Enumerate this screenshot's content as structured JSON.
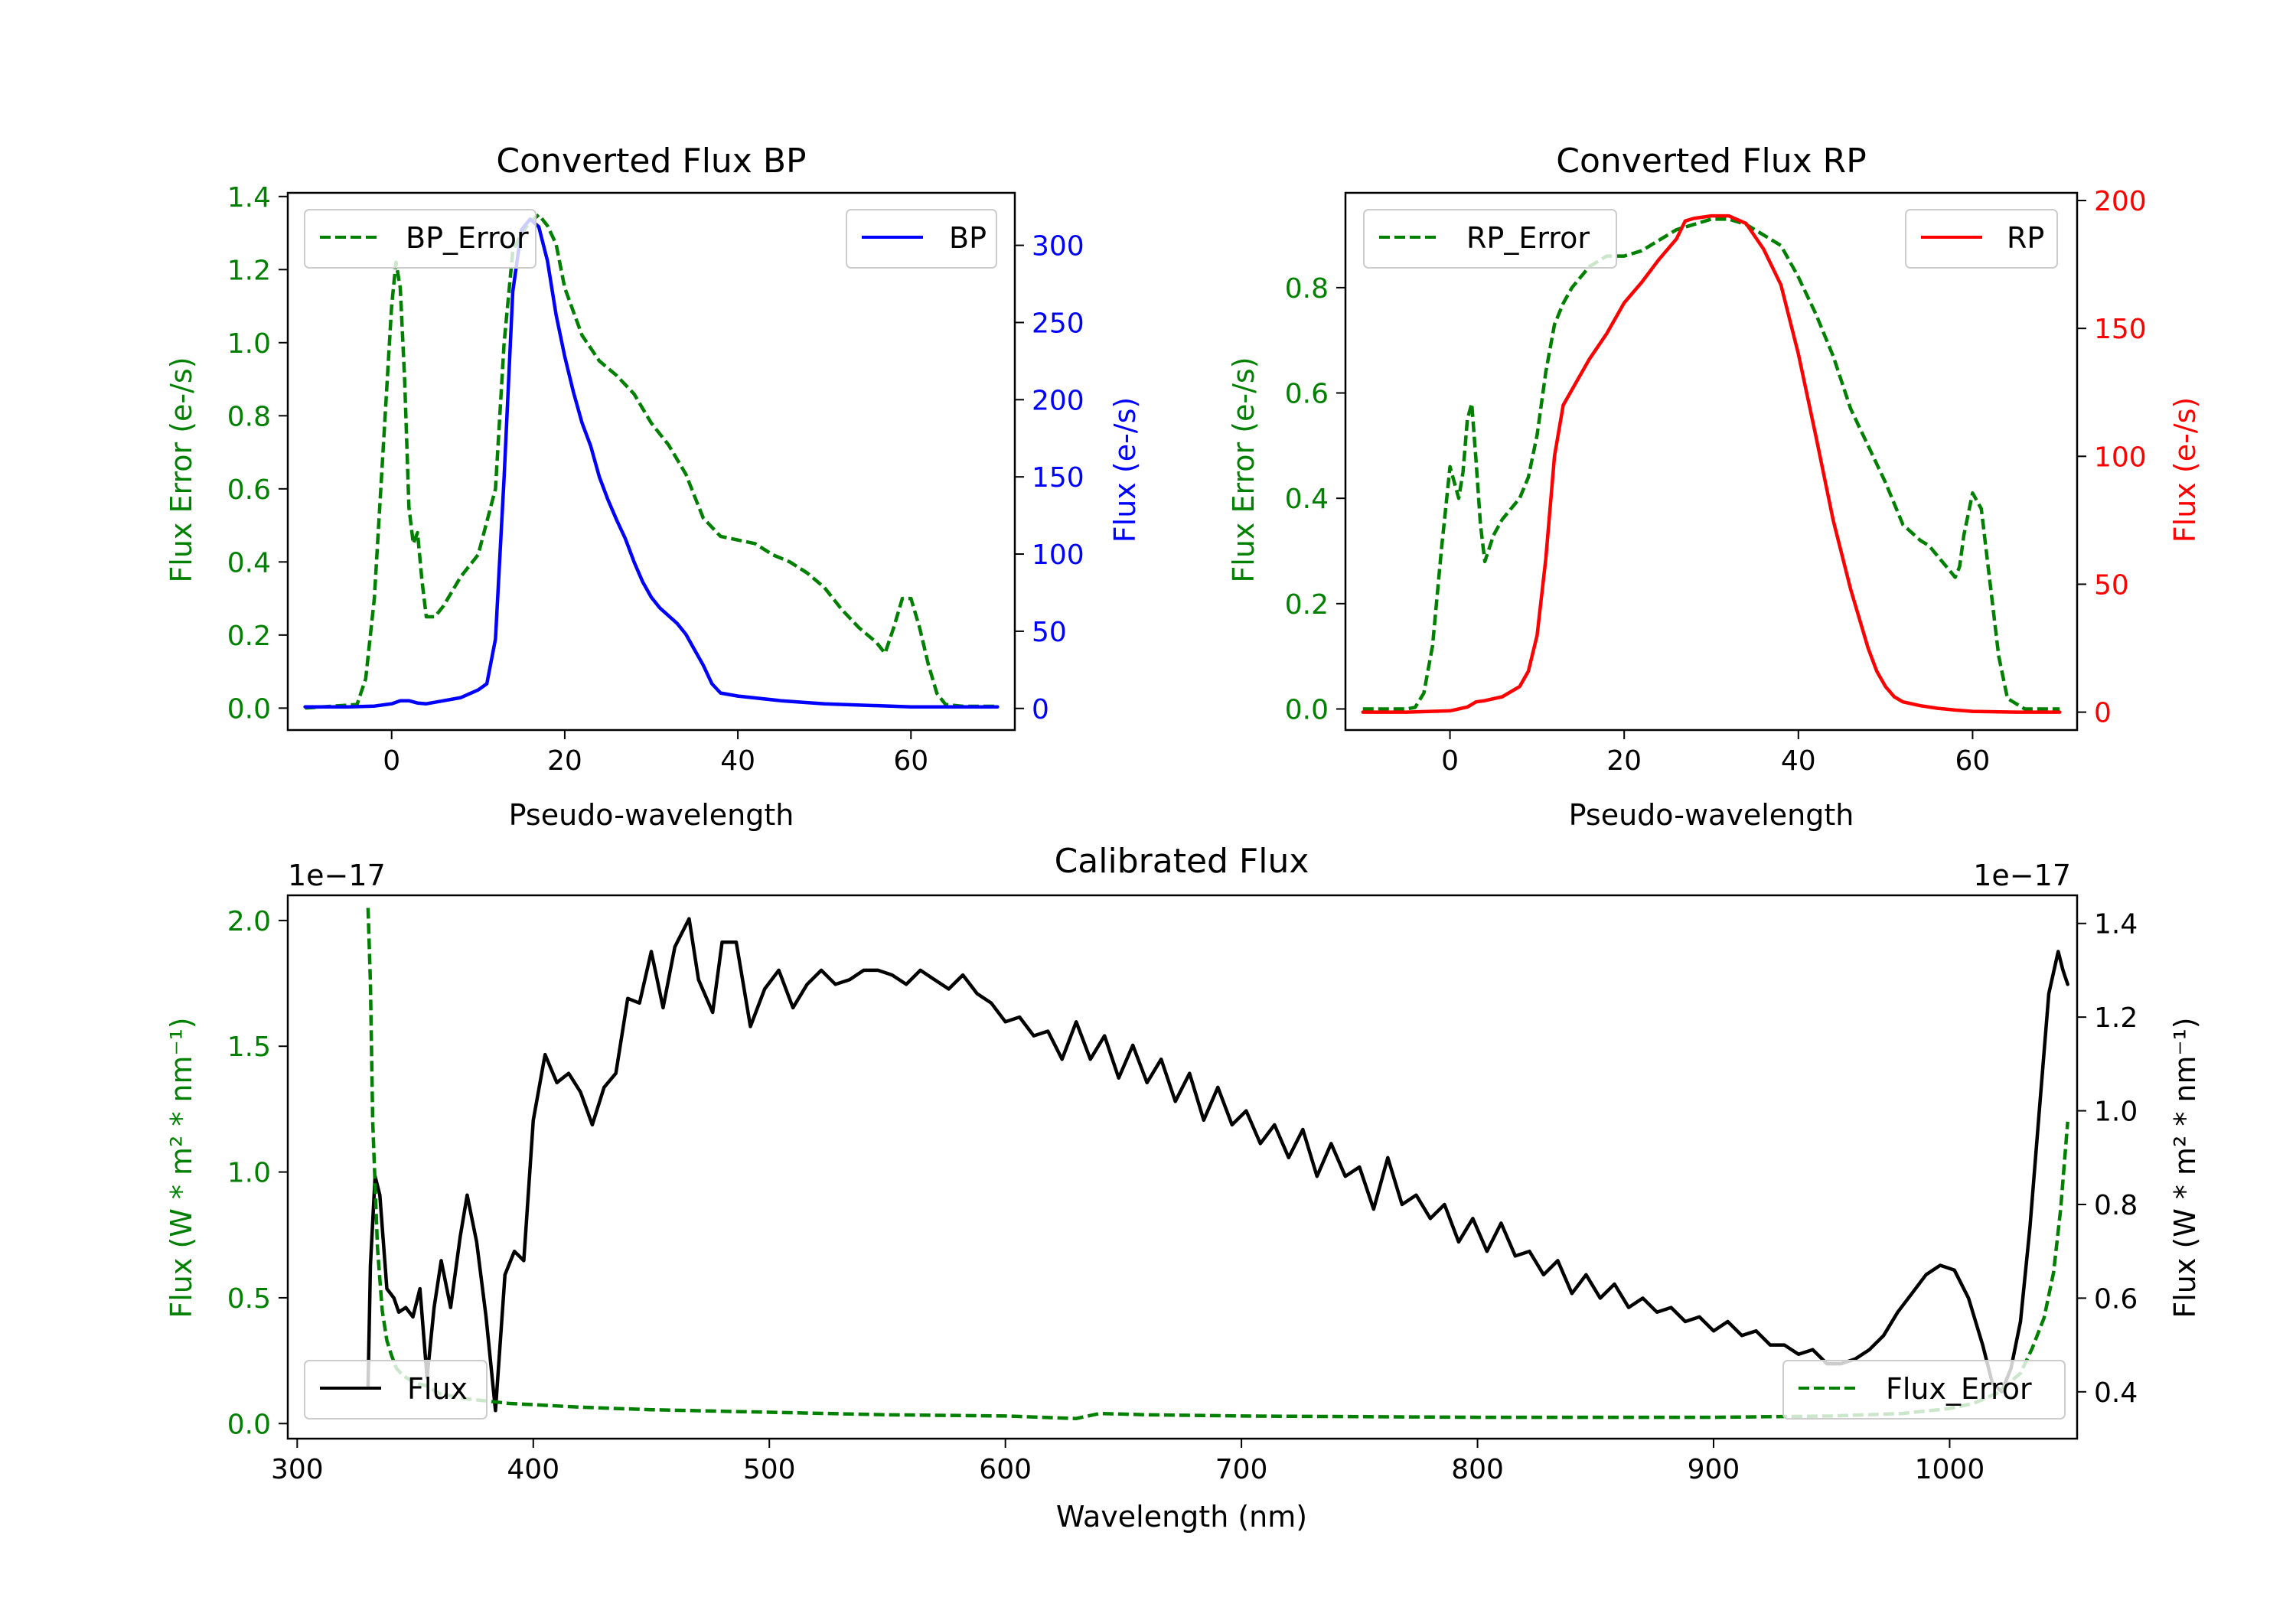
{
  "chart_data": [
    {
      "type": "line",
      "title": "Converted Flux BP",
      "xlabel": "Pseudo-wavelength",
      "ylabel_left": "Flux Error (e-/s)",
      "ylabel_right": "Flux (e-/s)",
      "xlim": [
        -12,
        72
      ],
      "ylim_left": [
        -0.06,
        1.41
      ],
      "ylim_right": [
        -14,
        334
      ],
      "xticks": [
        0,
        20,
        40,
        60
      ],
      "yticks_left": [
        0.0,
        0.2,
        0.4,
        0.6,
        0.8,
        1.0,
        1.2,
        1.4
      ],
      "yticks_left_labels": [
        "0.0",
        "0.2",
        "0.4",
        "0.6",
        "0.8",
        "1.0",
        "1.2",
        "1.4"
      ],
      "yticks_right": [
        0,
        50,
        100,
        150,
        200,
        250,
        300
      ],
      "yticks_right_labels": [
        "0",
        "50",
        "100",
        "150",
        "200",
        "250",
        "300"
      ],
      "left_color": "#008000",
      "right_color": "#0000ff",
      "legend_left": "BP_Error",
      "legend_right": "BP",
      "series": [
        {
          "name": "BP_Error",
          "axis": "left",
          "color": "#008000",
          "dash": true,
          "x": [
            -10,
            -4,
            -3,
            -2,
            -1,
            0,
            0.5,
            1,
            1.5,
            2,
            2.5,
            3,
            3.5,
            4,
            5,
            6,
            8,
            10,
            12,
            13,
            14,
            15,
            16,
            17,
            18,
            19,
            20,
            22,
            24,
            26,
            28,
            30,
            32,
            34,
            35,
            36,
            38,
            40,
            42,
            44,
            46,
            48,
            50,
            52,
            54,
            56,
            57,
            58,
            59,
            60,
            61,
            62,
            63,
            64,
            66,
            68,
            70
          ],
          "y": [
            0,
            0.01,
            0.08,
            0.3,
            0.7,
            1.1,
            1.22,
            1.15,
            0.9,
            0.55,
            0.45,
            0.48,
            0.35,
            0.25,
            0.25,
            0.28,
            0.36,
            0.42,
            0.6,
            1.0,
            1.25,
            1.3,
            1.33,
            1.35,
            1.32,
            1.27,
            1.15,
            1.02,
            0.95,
            0.91,
            0.86,
            0.78,
            0.72,
            0.64,
            0.58,
            0.52,
            0.47,
            0.46,
            0.45,
            0.42,
            0.4,
            0.37,
            0.33,
            0.27,
            0.22,
            0.18,
            0.15,
            0.22,
            0.3,
            0.3,
            0.22,
            0.12,
            0.04,
            0.01,
            0.005,
            0.005,
            0.005
          ]
        },
        {
          "name": "BP",
          "axis": "right",
          "color": "#0000ff",
          "dash": false,
          "x": [
            -10,
            -5,
            -2,
            0,
            1,
            2,
            3,
            4,
            6,
            8,
            10,
            11,
            12,
            13,
            14,
            15,
            16,
            17,
            18,
            19,
            20,
            21,
            22,
            23,
            24,
            25,
            26,
            27,
            28,
            29,
            30,
            31,
            32,
            33,
            34,
            35,
            36,
            37,
            38,
            40,
            45,
            50,
            55,
            60,
            65,
            70
          ],
          "y": [
            1,
            1,
            1.5,
            3,
            5,
            5,
            3.5,
            3,
            5,
            7,
            12,
            16,
            45,
            150,
            270,
            310,
            317,
            312,
            290,
            255,
            228,
            205,
            185,
            170,
            150,
            135,
            122,
            110,
            95,
            82,
            72,
            65,
            60,
            55,
            48,
            38,
            28,
            16,
            10,
            8,
            5,
            3,
            2,
            1,
            1,
            1
          ]
        }
      ]
    },
    {
      "type": "line",
      "title": "Converted Flux RP",
      "xlabel": "Pseudo-wavelength",
      "ylabel_left": "Flux Error (e-/s)",
      "ylabel_right": "Flux (e-/s)",
      "xlim": [
        -12,
        72
      ],
      "ylim_left": [
        -0.04,
        0.98
      ],
      "ylim_right": [
        -7,
        203
      ],
      "xticks": [
        0,
        20,
        40,
        60
      ],
      "yticks_left": [
        0.0,
        0.2,
        0.4,
        0.6,
        0.8
      ],
      "yticks_left_labels": [
        "0.0",
        "0.2",
        "0.4",
        "0.6",
        "0.8"
      ],
      "yticks_right": [
        0,
        50,
        100,
        150,
        200
      ],
      "yticks_right_labels": [
        "0",
        "50",
        "100",
        "150",
        "200"
      ],
      "left_color": "#008000",
      "right_color": "#ff0000",
      "legend_left": "RP_Error",
      "legend_right": "RP",
      "series": [
        {
          "name": "RP_Error",
          "axis": "left",
          "color": "#008000",
          "dash": true,
          "x": [
            -10,
            -5,
            -4,
            -3,
            -2,
            -1,
            0,
            0.5,
            1,
            1.5,
            2,
            2.5,
            3,
            3.5,
            4,
            5,
            6,
            7,
            8,
            9,
            10,
            11,
            12,
            13,
            14,
            15,
            16,
            18,
            20,
            22,
            24,
            26,
            28,
            30,
            32,
            34,
            36,
            38,
            40,
            42,
            44,
            46,
            48,
            50,
            52,
            54,
            55,
            56,
            57,
            58,
            58.5,
            59,
            60,
            61,
            62,
            63,
            64,
            66,
            68,
            70
          ],
          "y": [
            0,
            0,
            0.003,
            0.03,
            0.12,
            0.3,
            0.46,
            0.43,
            0.4,
            0.45,
            0.55,
            0.58,
            0.47,
            0.35,
            0.28,
            0.33,
            0.36,
            0.38,
            0.4,
            0.44,
            0.52,
            0.64,
            0.73,
            0.77,
            0.8,
            0.82,
            0.84,
            0.86,
            0.86,
            0.87,
            0.89,
            0.91,
            0.92,
            0.93,
            0.93,
            0.92,
            0.9,
            0.88,
            0.82,
            0.75,
            0.67,
            0.57,
            0.5,
            0.43,
            0.35,
            0.32,
            0.31,
            0.29,
            0.27,
            0.25,
            0.27,
            0.33,
            0.41,
            0.38,
            0.24,
            0.1,
            0.02,
            0,
            0,
            0
          ]
        },
        {
          "name": "RP",
          "axis": "right",
          "color": "#ff0000",
          "dash": false,
          "x": [
            -10,
            -5,
            0,
            2,
            3,
            4,
            6,
            8,
            9,
            10,
            11,
            12,
            13,
            14,
            16,
            18,
            20,
            22,
            24,
            26,
            27,
            28,
            30,
            32,
            34,
            36,
            38,
            40,
            42,
            44,
            46,
            48,
            49,
            50,
            51,
            52,
            54,
            56,
            58,
            60,
            65,
            70
          ],
          "y": [
            0,
            0,
            0.5,
            2,
            4,
            4.5,
            6,
            10,
            16,
            30,
            60,
            100,
            120,
            126,
            138,
            148,
            160,
            168,
            177,
            185,
            192,
            193,
            194,
            194,
            191,
            181,
            167,
            140,
            108,
            75,
            48,
            25,
            16,
            10,
            6,
            4,
            2.5,
            1.5,
            0.8,
            0.3,
            0,
            0
          ]
        }
      ]
    },
    {
      "type": "line",
      "title": "Calibrated Flux",
      "xlabel": "Wavelength (nm)",
      "ylabel_left": "Flux (W * m² * nm⁻¹)",
      "ylabel_right": "Flux (W * m² * nm⁻¹)",
      "offset_left": "1e−17",
      "offset_right": "1e−17",
      "xlim": [
        296,
        1054
      ],
      "ylim_left": [
        -0.06,
        2.1
      ],
      "ylim_right": [
        0.3,
        1.46
      ],
      "xticks": [
        300,
        400,
        500,
        600,
        700,
        800,
        900,
        1000
      ],
      "yticks_left": [
        0.0,
        0.5,
        1.0,
        1.5,
        2.0
      ],
      "yticks_left_labels": [
        "0.0",
        "0.5",
        "1.0",
        "1.5",
        "2.0"
      ],
      "yticks_right": [
        0.4,
        0.6,
        0.8,
        1.0,
        1.2,
        1.4
      ],
      "yticks_right_labels": [
        "0.4",
        "0.6",
        "0.8",
        "1.0",
        "1.2",
        "1.4"
      ],
      "left_color": "#008000",
      "right_color": "#000000",
      "legend_left": "Flux",
      "legend_right": "Flux_Error",
      "series": [
        {
          "name": "Flux",
          "axis": "right",
          "color": "#000000",
          "dash": false,
          "x": [
            330,
            331,
            333,
            335,
            338,
            341,
            343,
            346,
            349,
            352,
            355,
            358,
            361,
            365,
            369,
            372,
            376,
            380,
            384,
            388,
            392,
            396,
            400,
            405,
            410,
            415,
            420,
            425,
            430,
            435,
            440,
            445,
            450,
            455,
            460,
            466,
            470,
            476,
            480,
            486,
            492,
            498,
            504,
            510,
            516,
            522,
            528,
            534,
            540,
            546,
            552,
            558,
            564,
            570,
            576,
            582,
            588,
            594,
            600,
            606,
            612,
            618,
            624,
            630,
            636,
            642,
            648,
            654,
            660,
            666,
            672,
            678,
            684,
            690,
            696,
            702,
            708,
            714,
            720,
            726,
            732,
            738,
            744,
            750,
            756,
            762,
            768,
            774,
            780,
            786,
            792,
            798,
            804,
            810,
            816,
            822,
            828,
            834,
            840,
            846,
            852,
            858,
            864,
            870,
            876,
            882,
            888,
            894,
            900,
            906,
            912,
            918,
            924,
            930,
            936,
            942,
            948,
            954,
            960,
            966,
            972,
            978,
            984,
            990,
            996,
            1002,
            1008,
            1014,
            1018,
            1022,
            1026,
            1030,
            1034,
            1038,
            1042,
            1046,
            1048,
            1050
          ],
          "y": [
            0.41,
            0.67,
            0.86,
            0.82,
            0.62,
            0.6,
            0.57,
            0.58,
            0.56,
            0.62,
            0.43,
            0.58,
            0.68,
            0.58,
            0.73,
            0.82,
            0.72,
            0.56,
            0.36,
            0.65,
            0.7,
            0.68,
            0.98,
            1.12,
            1.06,
            1.08,
            1.04,
            0.97,
            1.05,
            1.08,
            1.24,
            1.23,
            1.34,
            1.22,
            1.35,
            1.41,
            1.28,
            1.21,
            1.36,
            1.36,
            1.18,
            1.26,
            1.3,
            1.22,
            1.27,
            1.3,
            1.27,
            1.28,
            1.3,
            1.3,
            1.29,
            1.27,
            1.3,
            1.28,
            1.26,
            1.29,
            1.25,
            1.23,
            1.19,
            1.2,
            1.16,
            1.17,
            1.11,
            1.19,
            1.11,
            1.16,
            1.07,
            1.14,
            1.06,
            1.11,
            1.02,
            1.08,
            0.98,
            1.05,
            0.97,
            1.0,
            0.93,
            0.97,
            0.9,
            0.96,
            0.86,
            0.93,
            0.86,
            0.88,
            0.79,
            0.9,
            0.8,
            0.82,
            0.77,
            0.8,
            0.72,
            0.77,
            0.7,
            0.76,
            0.69,
            0.7,
            0.65,
            0.68,
            0.61,
            0.65,
            0.6,
            0.63,
            0.58,
            0.6,
            0.57,
            0.58,
            0.55,
            0.56,
            0.53,
            0.55,
            0.52,
            0.53,
            0.5,
            0.5,
            0.48,
            0.49,
            0.46,
            0.46,
            0.47,
            0.49,
            0.52,
            0.57,
            0.61,
            0.65,
            0.67,
            0.66,
            0.6,
            0.5,
            0.42,
            0.4,
            0.45,
            0.55,
            0.75,
            1.0,
            1.25,
            1.34,
            1.3,
            1.27
          ]
        },
        {
          "name": "Flux_Error",
          "axis": "left",
          "color": "#008000",
          "dash": true,
          "x": [
            330,
            331,
            332,
            334,
            336,
            338,
            340,
            342,
            345,
            350,
            355,
            360,
            370,
            380,
            390,
            400,
            420,
            450,
            500,
            550,
            600,
            630,
            640,
            660,
            700,
            800,
            900,
            950,
            980,
            1000,
            1010,
            1020,
            1025,
            1030,
            1035,
            1040,
            1044,
            1047,
            1050
          ],
          "y": [
            2.05,
            1.75,
            1.2,
            0.7,
            0.45,
            0.33,
            0.27,
            0.22,
            0.19,
            0.16,
            0.15,
            0.12,
            0.1,
            0.09,
            0.08,
            0.075,
            0.065,
            0.055,
            0.045,
            0.035,
            0.03,
            0.02,
            0.04,
            0.035,
            0.03,
            0.025,
            0.025,
            0.03,
            0.04,
            0.06,
            0.08,
            0.12,
            0.16,
            0.2,
            0.3,
            0.42,
            0.6,
            0.85,
            1.2
          ]
        }
      ]
    }
  ]
}
